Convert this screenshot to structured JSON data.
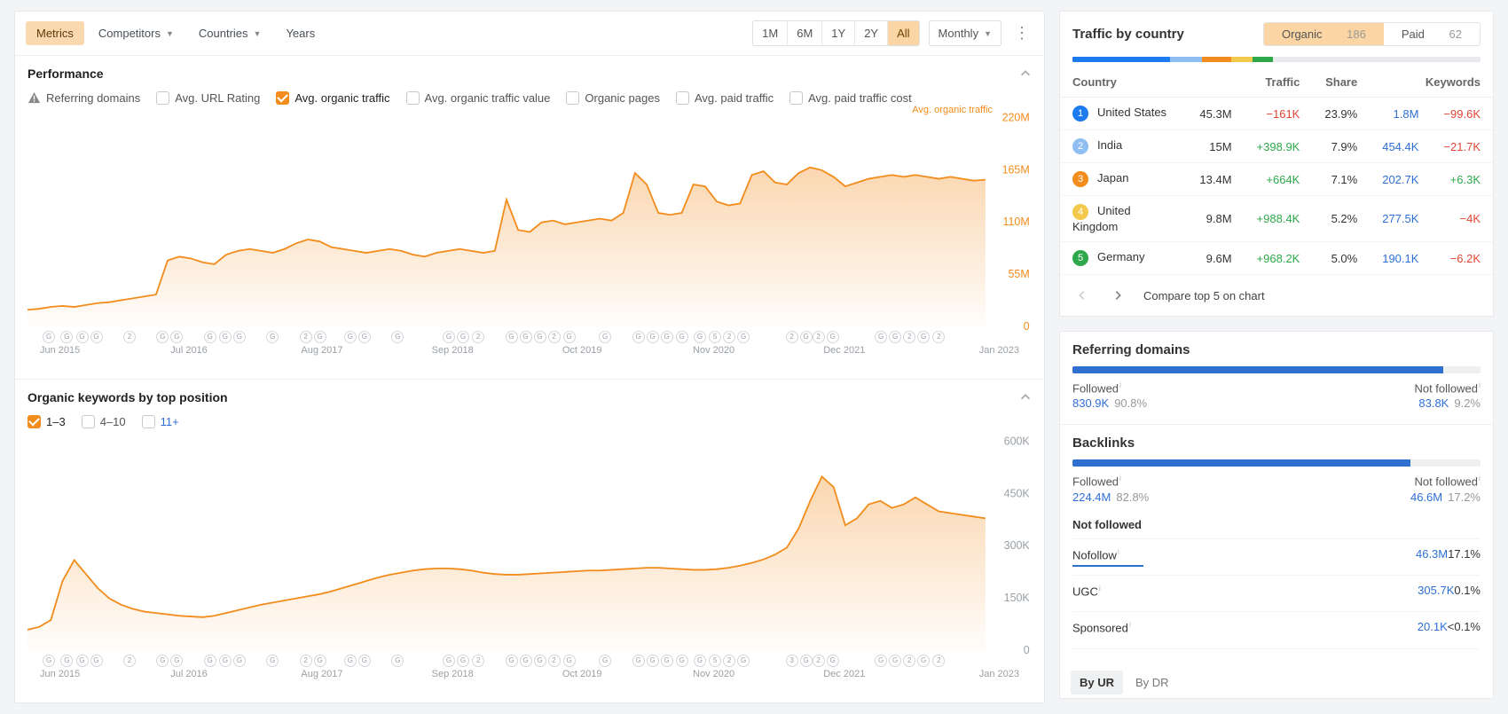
{
  "colors": {
    "accent": "#f28c1c",
    "area_fill_top": "rgba(242,140,28,0.35)",
    "area_fill_bottom": "rgba(242,140,28,0.02)",
    "link": "#2e6fd6",
    "pos": "#2fa84b",
    "neg": "#e04636",
    "bar_blue": "#2f6fd0",
    "rank_colors": [
      "#1d7bf0",
      "#8fbef2",
      "#f28c1c",
      "#f2c94c",
      "#2fa84b"
    ]
  },
  "tabs": {
    "items": [
      {
        "label": "Metrics",
        "active": true,
        "caret": false
      },
      {
        "label": "Competitors",
        "active": false,
        "caret": true
      },
      {
        "label": "Countries",
        "active": false,
        "caret": true
      },
      {
        "label": "Years",
        "active": false,
        "caret": false
      }
    ]
  },
  "range": {
    "items": [
      {
        "label": "1M",
        "active": false
      },
      {
        "label": "6M",
        "active": false
      },
      {
        "label": "1Y",
        "active": false
      },
      {
        "label": "2Y",
        "active": false
      },
      {
        "label": "All",
        "active": true
      }
    ],
    "freq_label": "Monthly"
  },
  "performance": {
    "title": "Performance",
    "legend_tr": "Avg. organic traffic",
    "options": [
      {
        "label": "Referring domains",
        "checked": false,
        "warn": true
      },
      {
        "label": "Avg. URL Rating",
        "checked": false,
        "warn": false
      },
      {
        "label": "Avg. organic traffic",
        "checked": true,
        "warn": false
      },
      {
        "label": "Avg. organic traffic value",
        "checked": false,
        "warn": false
      },
      {
        "label": "Organic pages",
        "checked": false,
        "warn": false
      },
      {
        "label": "Avg. paid traffic",
        "checked": false,
        "warn": false
      },
      {
        "label": "Avg. paid traffic cost",
        "checked": false,
        "warn": false
      }
    ],
    "y_ticks": [
      "220M",
      "165M",
      "110M",
      "55M",
      "0"
    ],
    "x_ticks": [
      "Jun 2015",
      "Jul 2016",
      "Aug 2017",
      "Sep 2018",
      "Oct 2019",
      "Nov 2020",
      "Dec 2021",
      "Jan 2023"
    ],
    "y_max": 220,
    "series": [
      18,
      19,
      21,
      22,
      21,
      23,
      25,
      26,
      28,
      30,
      32,
      34,
      70,
      74,
      72,
      68,
      66,
      76,
      80,
      82,
      80,
      78,
      82,
      88,
      92,
      90,
      84,
      82,
      80,
      78,
      80,
      82,
      80,
      76,
      74,
      78,
      80,
      82,
      80,
      78,
      80,
      134,
      102,
      100,
      110,
      112,
      108,
      110,
      112,
      114,
      112,
      120,
      162,
      150,
      120,
      118,
      120,
      150,
      148,
      132,
      128,
      130,
      160,
      164,
      152,
      150,
      162,
      168,
      165,
      158,
      148,
      152,
      156,
      158,
      160,
      158,
      160,
      158,
      156,
      158,
      156,
      154,
      155
    ],
    "markers": [
      [
        "G"
      ],
      [
        "G"
      ],
      [
        "G",
        "G"
      ],
      [],
      [
        "2"
      ],
      [],
      [
        "G",
        "G"
      ],
      [],
      [
        "G"
      ],
      [
        "G",
        "G"
      ],
      [],
      [
        "G"
      ],
      [],
      [
        "2",
        "G"
      ],
      [],
      [
        "G",
        "G"
      ],
      [],
      [
        "G"
      ],
      [],
      [],
      [
        "G",
        "G"
      ],
      [
        "2"
      ],
      [],
      [
        "G",
        "G",
        "G",
        "2"
      ],
      [
        "G"
      ],
      [],
      [
        "G"
      ],
      [],
      [
        "G",
        "G",
        "G"
      ],
      [
        "G"
      ],
      [
        "G"
      ],
      [
        "5",
        "2",
        "G"
      ],
      [],
      [],
      [
        "2",
        "G"
      ],
      [
        "2",
        "G"
      ],
      [],
      [],
      [
        "G",
        "G",
        "2",
        "G"
      ],
      [
        "2"
      ],
      [],
      []
    ]
  },
  "keywords": {
    "title": "Organic keywords by top position",
    "options": [
      {
        "label": "1–3",
        "checked": true
      },
      {
        "label": "4–10",
        "checked": false
      },
      {
        "label": "11+",
        "checked": false
      }
    ],
    "y_ticks": [
      "600K",
      "450K",
      "300K",
      "150K",
      "0"
    ],
    "x_ticks": [
      "Jun 2015",
      "Jul 2016",
      "Aug 2017",
      "Sep 2018",
      "Oct 2019",
      "Nov 2020",
      "Dec 2021",
      "Jan 2023"
    ],
    "y_max": 600,
    "series": [
      60,
      68,
      88,
      200,
      260,
      220,
      180,
      150,
      132,
      120,
      112,
      108,
      104,
      100,
      98,
      96,
      100,
      108,
      116,
      124,
      132,
      138,
      144,
      150,
      156,
      162,
      170,
      180,
      190,
      200,
      210,
      218,
      224,
      230,
      234,
      236,
      236,
      234,
      230,
      224,
      220,
      218,
      218,
      220,
      222,
      224,
      226,
      228,
      230,
      230,
      232,
      234,
      236,
      238,
      238,
      236,
      234,
      232,
      232,
      234,
      238,
      244,
      252,
      262,
      276,
      296,
      350,
      430,
      500,
      470,
      360,
      380,
      420,
      430,
      410,
      420,
      440,
      420,
      400,
      395,
      390,
      385,
      380
    ],
    "markers": [
      [
        "G"
      ],
      [
        "G"
      ],
      [
        "G",
        "G"
      ],
      [],
      [
        "2"
      ],
      [],
      [
        "G",
        "G"
      ],
      [],
      [
        "G"
      ],
      [
        "G",
        "G"
      ],
      [],
      [
        "G"
      ],
      [],
      [
        "2",
        "G"
      ],
      [],
      [
        "G",
        "G"
      ],
      [],
      [
        "G"
      ],
      [],
      [],
      [
        "G",
        "G"
      ],
      [
        "2"
      ],
      [],
      [
        "G",
        "G",
        "G",
        "2"
      ],
      [
        "G"
      ],
      [],
      [
        "G"
      ],
      [],
      [
        "G",
        "G",
        "G"
      ],
      [
        "G"
      ],
      [
        "G"
      ],
      [
        "5",
        "2",
        "G"
      ],
      [],
      [],
      [
        "3",
        "G"
      ],
      [
        "2",
        "G"
      ],
      [],
      [],
      [
        "G",
        "G",
        "2",
        "G"
      ],
      [
        "2"
      ],
      [],
      []
    ]
  },
  "traffic_by_country": {
    "title": "Traffic by country",
    "pill": {
      "organic_label": "Organic",
      "organic_count": "186",
      "paid_label": "Paid",
      "paid_count": "62"
    },
    "colorbar": [
      {
        "color": "#1d7bf0",
        "width": 23.9
      },
      {
        "color": "#8fbef2",
        "width": 7.9
      },
      {
        "color": "#f28c1c",
        "width": 7.1
      },
      {
        "color": "#f2c94c",
        "width": 5.2
      },
      {
        "color": "#2fa84b",
        "width": 5.0
      },
      {
        "color": "#e8eaed",
        "width": 50.9
      }
    ],
    "cols": [
      "Country",
      "Traffic",
      "Share",
      "Keywords"
    ],
    "rows": [
      {
        "rank": "1",
        "rank_color": "#1d7bf0",
        "country": "United States",
        "traffic": "45.3M",
        "traffic_delta": "−161K",
        "delta_sign": "neg",
        "share": "23.9%",
        "keywords": "1.8M",
        "kw_delta": "−99.6K",
        "kw_sign": "neg"
      },
      {
        "rank": "2",
        "rank_color": "#8fbef2",
        "country": "India",
        "traffic": "15M",
        "traffic_delta": "+398.9K",
        "delta_sign": "pos",
        "share": "7.9%",
        "keywords": "454.4K",
        "kw_delta": "−21.7K",
        "kw_sign": "neg"
      },
      {
        "rank": "3",
        "rank_color": "#f28c1c",
        "country": "Japan",
        "traffic": "13.4M",
        "traffic_delta": "+664K",
        "delta_sign": "pos",
        "share": "7.1%",
        "keywords": "202.7K",
        "kw_delta": "+6.3K",
        "kw_sign": "pos"
      },
      {
        "rank": "4",
        "rank_color": "#f2c94c",
        "country": "United Kingdom",
        "traffic": "9.8M",
        "traffic_delta": "+988.4K",
        "delta_sign": "pos",
        "share": "5.2%",
        "keywords": "277.5K",
        "kw_delta": "−4K",
        "kw_sign": "neg"
      },
      {
        "rank": "5",
        "rank_color": "#2fa84b",
        "country": "Germany",
        "traffic": "9.6M",
        "traffic_delta": "+968.2K",
        "delta_sign": "pos",
        "share": "5.0%",
        "keywords": "190.1K",
        "kw_delta": "−6.2K",
        "kw_sign": "neg"
      }
    ],
    "compare_label": "Compare top 5 on chart"
  },
  "ref_domains": {
    "title": "Referring domains",
    "followed_label": "Followed",
    "not_followed_label": "Not followed",
    "followed_val": "830.9K",
    "followed_pct": "90.8%",
    "nf_val": "83.8K",
    "nf_pct": "9.2%",
    "bar_pct": 90.8,
    "bar_color": "#2f6fd0"
  },
  "backlinks": {
    "title": "Backlinks",
    "followed_label": "Followed",
    "not_followed_label": "Not followed",
    "followed_val": "224.4M",
    "followed_pct": "82.8%",
    "nf_val": "46.6M",
    "nf_pct": "17.2%",
    "bar_pct": 82.8,
    "bar_color": "#2f6fd0",
    "nf_section_title": "Not followed",
    "nf_rows": [
      {
        "label": "Nofollow",
        "val": "46.3M",
        "pct": "17.1%",
        "under_color": "#2f6fd0"
      },
      {
        "label": "UGC",
        "val": "305.7K",
        "pct": "0.1%",
        "under_color": "transparent"
      },
      {
        "label": "Sponsored",
        "val": "20.1K",
        "pct": "<0.1%",
        "under_color": "transparent"
      }
    ]
  },
  "by_tabs": {
    "items": [
      {
        "label": "By UR",
        "active": true
      },
      {
        "label": "By DR",
        "active": false
      }
    ]
  }
}
